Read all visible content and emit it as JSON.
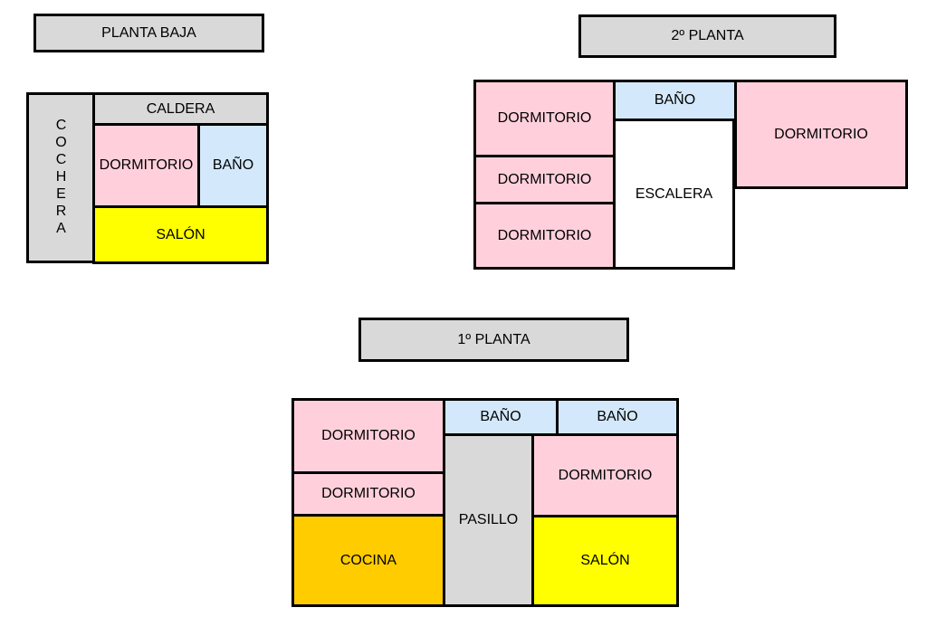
{
  "planta_baja": {
    "title": "PLANTA BAJA",
    "rooms": {
      "cochera": "COCHERA",
      "caldera": "CALDERA",
      "dormitorio": "DORMITORIO",
      "bano": "BAÑO",
      "salon": "SALÓN"
    }
  },
  "segunda_planta": {
    "title": "2º PLANTA",
    "rooms": {
      "dormitorio_1": "DORMITORIO",
      "dormitorio_2": "DORMITORIO",
      "dormitorio_3": "DORMITORIO",
      "bano": "BAÑO",
      "escalera": "ESCALERA",
      "dormitorio_4": "DORMITORIO"
    }
  },
  "primera_planta": {
    "title": "1º PLANTA",
    "rooms": {
      "dormitorio_1": "DORMITORIO",
      "dormitorio_2": "DORMITORIO",
      "cocina": "COCINA",
      "bano_1": "BAÑO",
      "bano_2": "BAÑO",
      "pasillo": "PASILLO",
      "dormitorio_3": "DORMITORIO",
      "salon": "SALÓN"
    }
  },
  "colors": {
    "gray": "#d9d9d9",
    "pink": "#ffd0dc",
    "blue": "#d3e8fa",
    "yellow": "#ffff00",
    "orange": "#ffcc00"
  }
}
